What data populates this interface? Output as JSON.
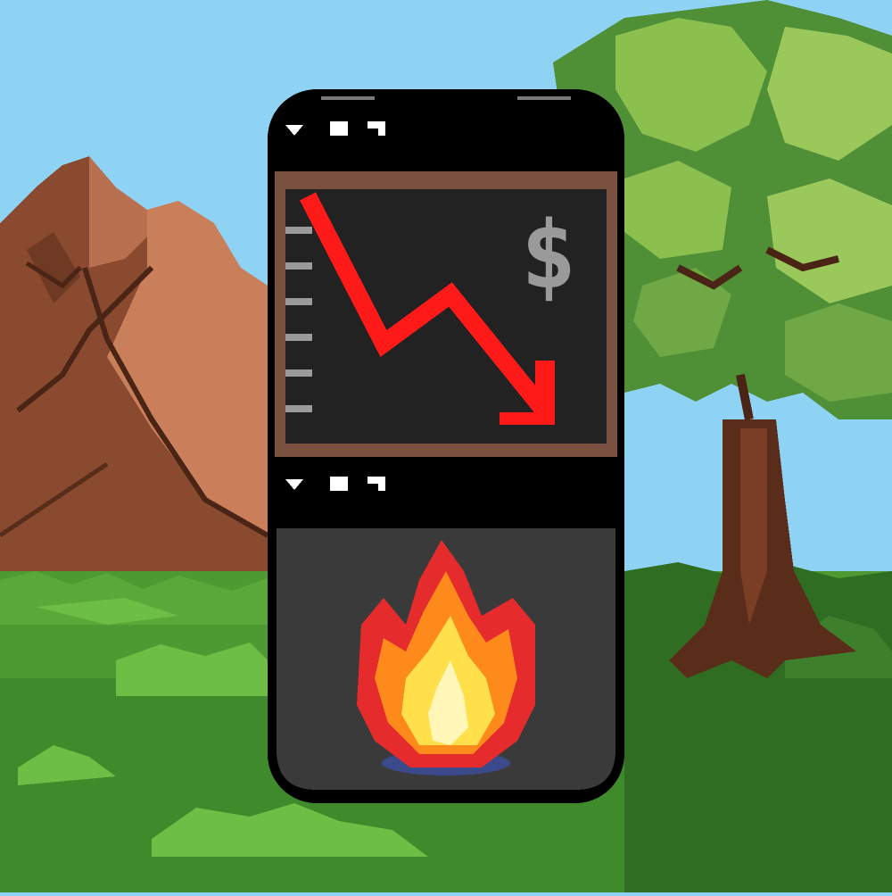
{
  "scene": {
    "sky_color": "#8fd3f4",
    "grass_color": "#4e9a32",
    "mountain_color": "#b0694a",
    "tree_foliage_color": "#5a9a3a",
    "trunk_color": "#5a2c1a"
  },
  "phone": {
    "top_status_icons": [
      "wifi-icon",
      "battery-icon",
      "signal-icon"
    ],
    "bottom_status_icons": [
      "wifi-icon",
      "battery-icon",
      "signal-icon"
    ],
    "body_color": "#000000",
    "screen_frame_color": "#7a5040",
    "screen_bg_color": "#222222",
    "lower_panel_color": "#3a3a3a"
  },
  "chart": {
    "symbol": "$",
    "line_color": "#ff1a1a",
    "trend": "down",
    "tick_count": 6
  },
  "fire": {
    "icon": "fire-icon",
    "colors": [
      "#e52b2b",
      "#ff8a1c",
      "#ffe04a",
      "#fff6b8"
    ]
  }
}
